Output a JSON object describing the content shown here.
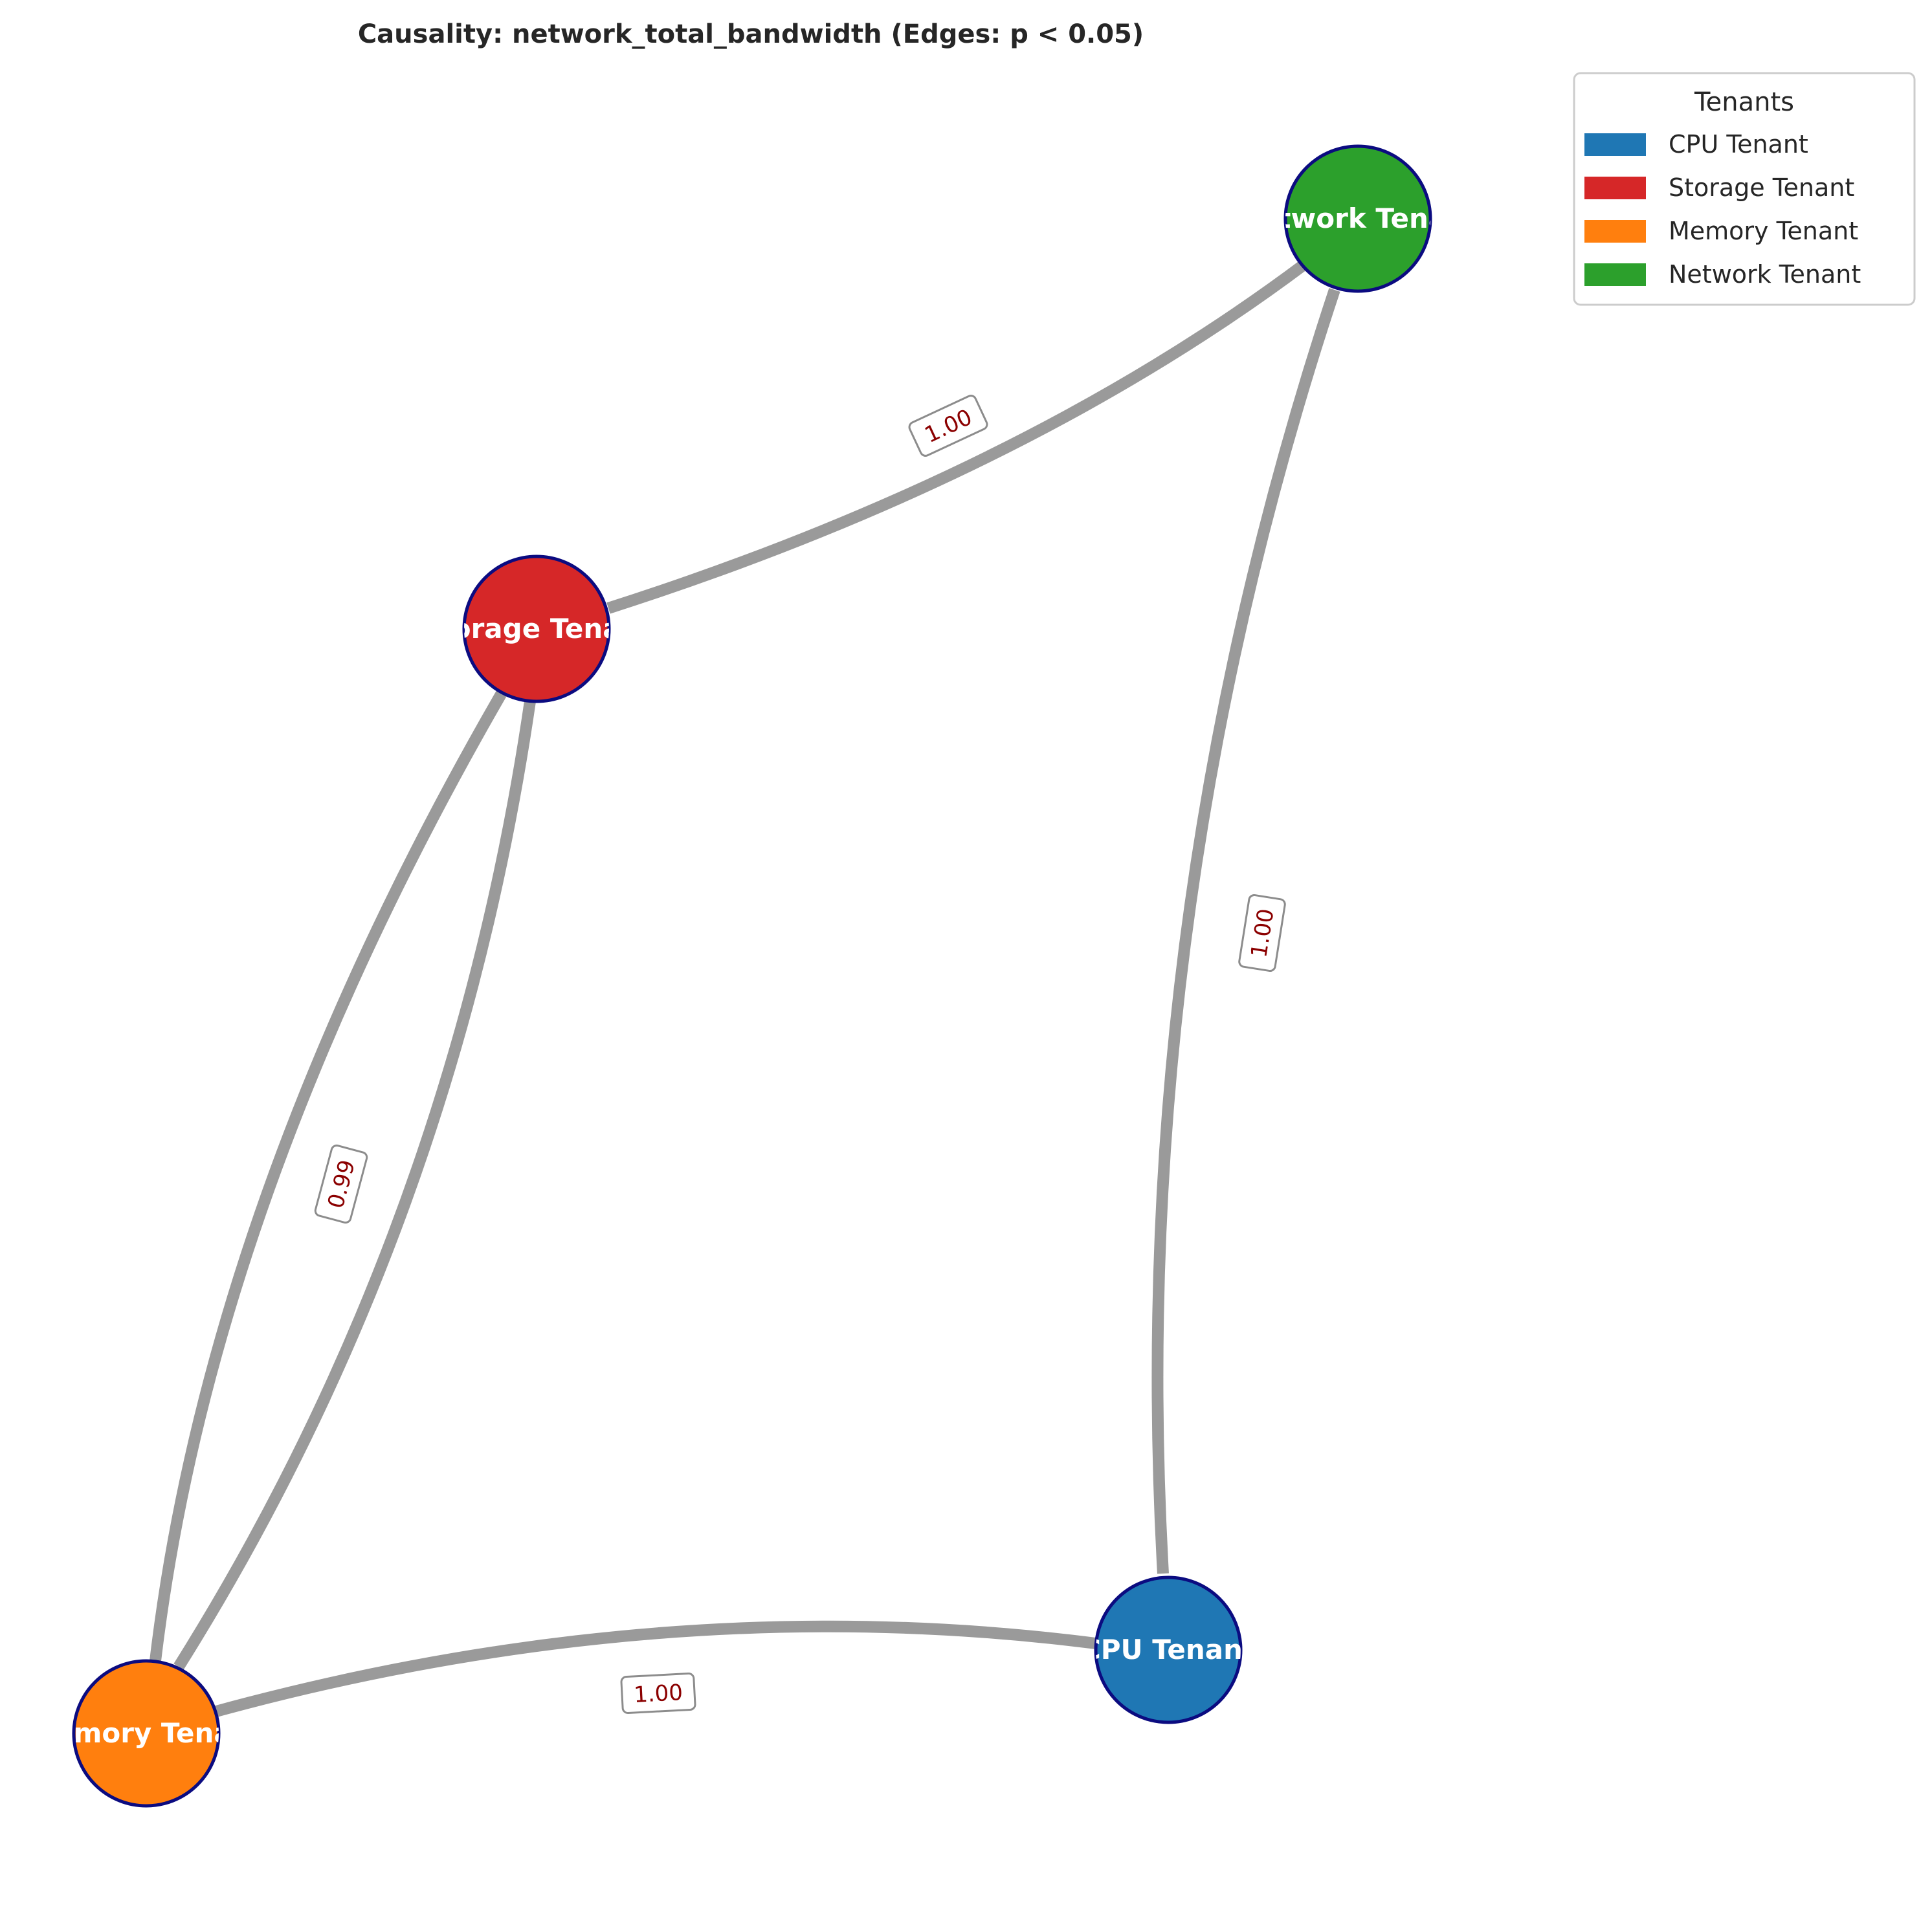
{
  "title": "Causality: network_total_bandwidth (Edges: p < 0.05)",
  "colors": {
    "edge": "#9a9a9a",
    "node_border": "#0b0b80",
    "edge_label_text": "#8b0000",
    "edge_label_border": "#8c8c8c"
  },
  "nodes": [
    {
      "id": "network",
      "label": "Network Tenant",
      "color": "#2ca02c"
    },
    {
      "id": "storage",
      "label": "Storage Tenant",
      "color": "#d62728"
    },
    {
      "id": "memory",
      "label": "Memory Tenant",
      "color": "#ff7f0e"
    },
    {
      "id": "cpu",
      "label": "CPU Tenant",
      "color": "#1f77b4"
    }
  ],
  "edges": [
    {
      "source": "storage",
      "target": "network",
      "weight": "1.00"
    },
    {
      "source": "cpu",
      "target": "network",
      "weight": "1.00"
    },
    {
      "source": "storage",
      "target": "memory",
      "weight": "0.99"
    },
    {
      "source": "memory",
      "target": "storage",
      "weight": ""
    },
    {
      "source": "memory",
      "target": "cpu",
      "weight": "1.00"
    }
  ],
  "legend": {
    "title": "Tenants",
    "items": [
      {
        "label": "CPU Tenant",
        "color": "#1f77b4"
      },
      {
        "label": "Storage Tenant",
        "color": "#d62728"
      },
      {
        "label": "Memory Tenant",
        "color": "#ff7f0e"
      },
      {
        "label": "Network Tenant",
        "color": "#2ca02c"
      }
    ]
  }
}
